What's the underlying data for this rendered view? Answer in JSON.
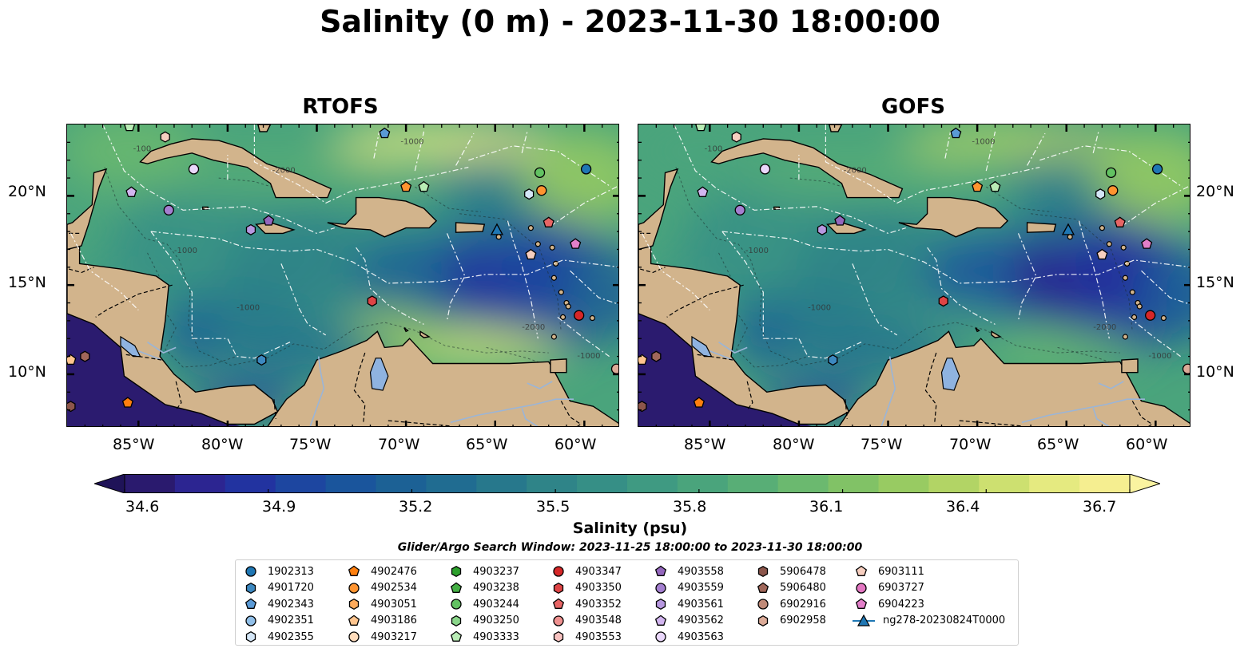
{
  "title": "Salinity (0 m) - 2023-11-30 18:00:00",
  "panels": [
    {
      "title": "RTOFS"
    },
    {
      "title": "GOFS"
    }
  ],
  "map": {
    "lon_range": [
      -89,
      -58
    ],
    "lat_range": [
      7,
      24
    ],
    "lon_ticks": [
      "85°W",
      "80°W",
      "75°W",
      "70°W",
      "65°W",
      "60°W"
    ],
    "lat_ticks": [
      "20°N",
      "15°N",
      "10°N"
    ],
    "land_color": "#d2b48c",
    "contour_labels": [
      "-100",
      "-1000",
      "-2000"
    ]
  },
  "colorbar": {
    "label": "Salinity (psu)",
    "min": 34.6,
    "max": 36.7,
    "ticks": [
      "34.6",
      "34.9",
      "35.2",
      "35.5",
      "35.8",
      "36.1",
      "36.4",
      "36.7"
    ],
    "colors": [
      "#2a1a6e",
      "#2c2591",
      "#2233a0",
      "#1d46a0",
      "#1a559c",
      "#1c6195",
      "#206c91",
      "#27788c",
      "#2f8488",
      "#368f86",
      "#3f9a82",
      "#4aa47c",
      "#58ae76",
      "#6bb96f",
      "#81c266",
      "#98cb62",
      "#b2d465",
      "#cde070",
      "#e5ea80",
      "#f5ee90"
    ]
  },
  "search_window": "Glider/Argo Search Window: 2023-11-25 18:00:00 to 2023-11-30 18:00:00",
  "legend": {
    "columns": [
      [
        {
          "label": "1902313",
          "marker": "circle",
          "color": "#1f77b4"
        },
        {
          "label": "4901720",
          "marker": "hexagon",
          "color": "#3c88c0"
        },
        {
          "label": "4902343",
          "marker": "pentagon",
          "color": "#5a9ad6"
        },
        {
          "label": "4902351",
          "marker": "circle",
          "color": "#91bfe8"
        },
        {
          "label": "4902355",
          "marker": "hexagon",
          "color": "#d4e6f7"
        }
      ],
      [
        {
          "label": "4902476",
          "marker": "pentagon",
          "color": "#ff7f0e"
        },
        {
          "label": "4902534",
          "marker": "circle",
          "color": "#ff9430"
        },
        {
          "label": "4903051",
          "marker": "hexagon",
          "color": "#ffab5c"
        },
        {
          "label": "4903186",
          "marker": "pentagon",
          "color": "#ffc58e"
        },
        {
          "label": "4903217",
          "marker": "circle",
          "color": "#ffdcbc"
        }
      ],
      [
        {
          "label": "4903237",
          "marker": "hexagon",
          "color": "#2ca02c"
        },
        {
          "label": "4903238",
          "marker": "pentagon",
          "color": "#45b045"
        },
        {
          "label": "4903244",
          "marker": "circle",
          "color": "#62c262"
        },
        {
          "label": "4903250",
          "marker": "hexagon",
          "color": "#8ad68a"
        },
        {
          "label": "4903333",
          "marker": "pentagon",
          "color": "#b9ecb5"
        }
      ],
      [
        {
          "label": "4903347",
          "marker": "circle",
          "color": "#d62728"
        },
        {
          "label": "4903350",
          "marker": "hexagon",
          "color": "#de4445"
        },
        {
          "label": "4903352",
          "marker": "pentagon",
          "color": "#e76565"
        },
        {
          "label": "4903548",
          "marker": "circle",
          "color": "#ef9190"
        },
        {
          "label": "4903553",
          "marker": "hexagon",
          "color": "#f7c2c0"
        }
      ],
      [
        {
          "label": "4903558",
          "marker": "pentagon",
          "color": "#9467bd"
        },
        {
          "label": "4903559",
          "marker": "circle",
          "color": "#a47fd0"
        },
        {
          "label": "4903561",
          "marker": "hexagon",
          "color": "#b798e0"
        },
        {
          "label": "4903562",
          "marker": "pentagon",
          "color": "#d2b5ef"
        },
        {
          "label": "4903563",
          "marker": "circle",
          "color": "#ead7fb"
        }
      ],
      [
        {
          "label": "5906478",
          "marker": "hexagon",
          "color": "#8c564b"
        },
        {
          "label": "5906480",
          "marker": "pentagon",
          "color": "#a0675a"
        },
        {
          "label": "6902916",
          "marker": "circle",
          "color": "#c08a78"
        },
        {
          "label": "6902958",
          "marker": "hexagon",
          "color": "#dcab98"
        }
      ],
      [
        {
          "label": "6903111",
          "marker": "pentagon",
          "color": "#f7cfc0"
        },
        {
          "label": "6903727",
          "marker": "circle",
          "color": "#e377c2"
        },
        {
          "label": "6904223",
          "marker": "pentagon",
          "color": "#e27fc9"
        },
        {
          "label": "ng278-20230824T0000",
          "marker": "glider",
          "color": "#1f77b4"
        }
      ]
    ]
  },
  "floats": [
    {
      "lon": -85.5,
      "lat": 23.9,
      "color": "#b9ecb5",
      "marker": "pentagon"
    },
    {
      "lon": -83.5,
      "lat": 23.3,
      "color": "#f7cfc0",
      "marker": "hexagon"
    },
    {
      "lon": -71.2,
      "lat": 23.5,
      "color": "#5a9ad6",
      "marker": "pentagon"
    },
    {
      "lon": -81.9,
      "lat": 21.5,
      "color": "#ead7fb",
      "marker": "circle"
    },
    {
      "lon": -85.4,
      "lat": 20.2,
      "color": "#d2b5ef",
      "marker": "pentagon"
    },
    {
      "lon": -83.3,
      "lat": 19.2,
      "color": "#a47fd0",
      "marker": "circle"
    },
    {
      "lon": -78.7,
      "lat": 18.1,
      "color": "#b798e0",
      "marker": "hexagon"
    },
    {
      "lon": -77.7,
      "lat": 18.6,
      "color": "#9467bd",
      "marker": "pentagon"
    },
    {
      "lon": -70.0,
      "lat": 20.5,
      "color": "#ff9430",
      "marker": "pentagon"
    },
    {
      "lon": -69.0,
      "lat": 20.5,
      "color": "#b9ecb5",
      "marker": "pentagon"
    },
    {
      "lon": -62.5,
      "lat": 21.3,
      "color": "#62c262",
      "marker": "circle"
    },
    {
      "lon": -62.4,
      "lat": 20.3,
      "color": "#ff9430",
      "marker": "circle"
    },
    {
      "lon": -63.1,
      "lat": 20.1,
      "color": "#d4e6f7",
      "marker": "hexagon"
    },
    {
      "lon": -59.9,
      "lat": 21.5,
      "color": "#1f77b4",
      "marker": "circle"
    },
    {
      "lon": -62.0,
      "lat": 18.5,
      "color": "#e76565",
      "marker": "pentagon"
    },
    {
      "lon": -60.5,
      "lat": 17.3,
      "color": "#e27fc9",
      "marker": "pentagon"
    },
    {
      "lon": -63.0,
      "lat": 16.7,
      "color": "#f7cfc0",
      "marker": "pentagon"
    },
    {
      "lon": -71.9,
      "lat": 14.1,
      "color": "#de4445",
      "marker": "hexagon"
    },
    {
      "lon": -60.3,
      "lat": 13.3,
      "color": "#d62728",
      "marker": "circle"
    },
    {
      "lon": -78.1,
      "lat": 10.8,
      "color": "#3c88c0",
      "marker": "hexagon"
    },
    {
      "lon": -85.6,
      "lat": 8.4,
      "color": "#ff7f0e",
      "marker": "pentagon"
    },
    {
      "lon": -88.0,
      "lat": 11.0,
      "color": "#a0675a",
      "marker": "hexagon"
    },
    {
      "lon": -88.8,
      "lat": 8.2,
      "color": "#8c564b",
      "marker": "hexagon"
    },
    {
      "lon": -58.2,
      "lat": 10.3,
      "color": "#dcab98",
      "marker": "circle"
    },
    {
      "lon": -88.8,
      "lat": 10.8,
      "color": "#ffc58e",
      "marker": "pentagon"
    }
  ],
  "glider": {
    "lon": -64.9,
    "lat": 18.1,
    "color": "#1f77b4"
  }
}
